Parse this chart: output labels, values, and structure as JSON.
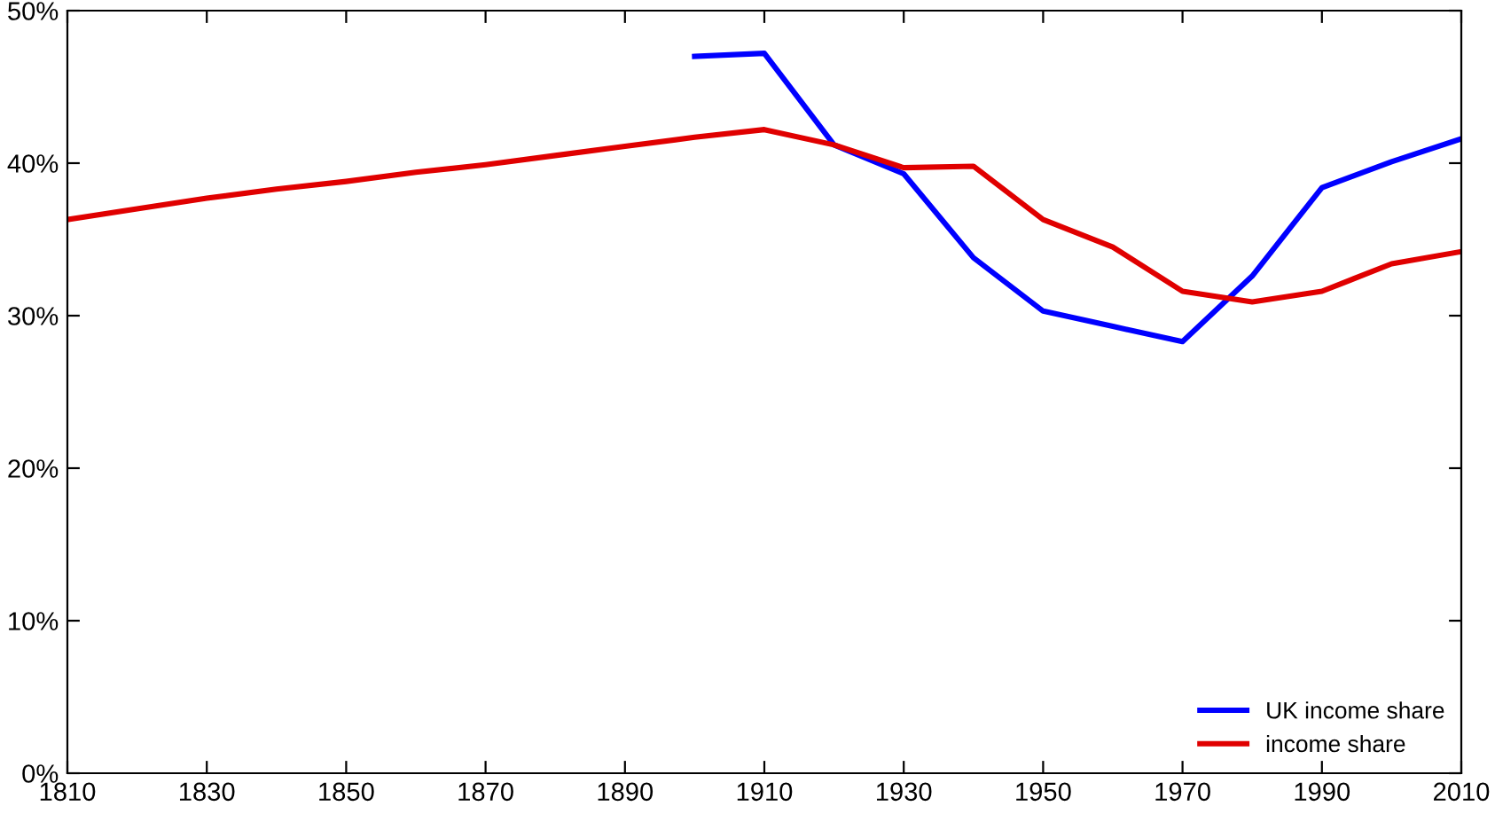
{
  "chart_data": {
    "type": "line",
    "x": [
      1810,
      1820,
      1830,
      1840,
      1850,
      1860,
      1870,
      1880,
      1890,
      1900,
      1910,
      1920,
      1930,
      1940,
      1950,
      1960,
      1970,
      1980,
      1990,
      2000,
      2010
    ],
    "series": [
      {
        "name": "UK income share",
        "color": "#0000ff",
        "values": [
          null,
          null,
          null,
          null,
          null,
          null,
          null,
          null,
          null,
          47.0,
          47.2,
          41.2,
          39.3,
          33.8,
          30.3,
          29.3,
          28.3,
          32.6,
          38.4,
          40.1,
          41.6
        ]
      },
      {
        "name": "income share",
        "color": "#e00000",
        "values": [
          36.3,
          37.0,
          37.7,
          38.3,
          38.8,
          39.4,
          39.9,
          40.5,
          41.1,
          41.7,
          42.2,
          41.2,
          39.7,
          39.8,
          36.3,
          34.5,
          31.6,
          30.9,
          31.6,
          33.4,
          34.2
        ]
      }
    ],
    "xlim": [
      1810,
      2010
    ],
    "xticks": [
      1810,
      1830,
      1850,
      1870,
      1890,
      1910,
      1930,
      1950,
      1970,
      1990,
      2010
    ],
    "ylim": [
      0,
      50
    ],
    "yticks": [
      {
        "value": 0,
        "label": "0%"
      },
      {
        "value": 10,
        "label": "10%"
      },
      {
        "value": 20,
        "label": "20%"
      },
      {
        "value": 30,
        "label": "30%"
      },
      {
        "value": 40,
        "label": "40%"
      },
      {
        "value": 50,
        "label": "50%"
      }
    ],
    "legend": "bottom right",
    "grid": false
  }
}
